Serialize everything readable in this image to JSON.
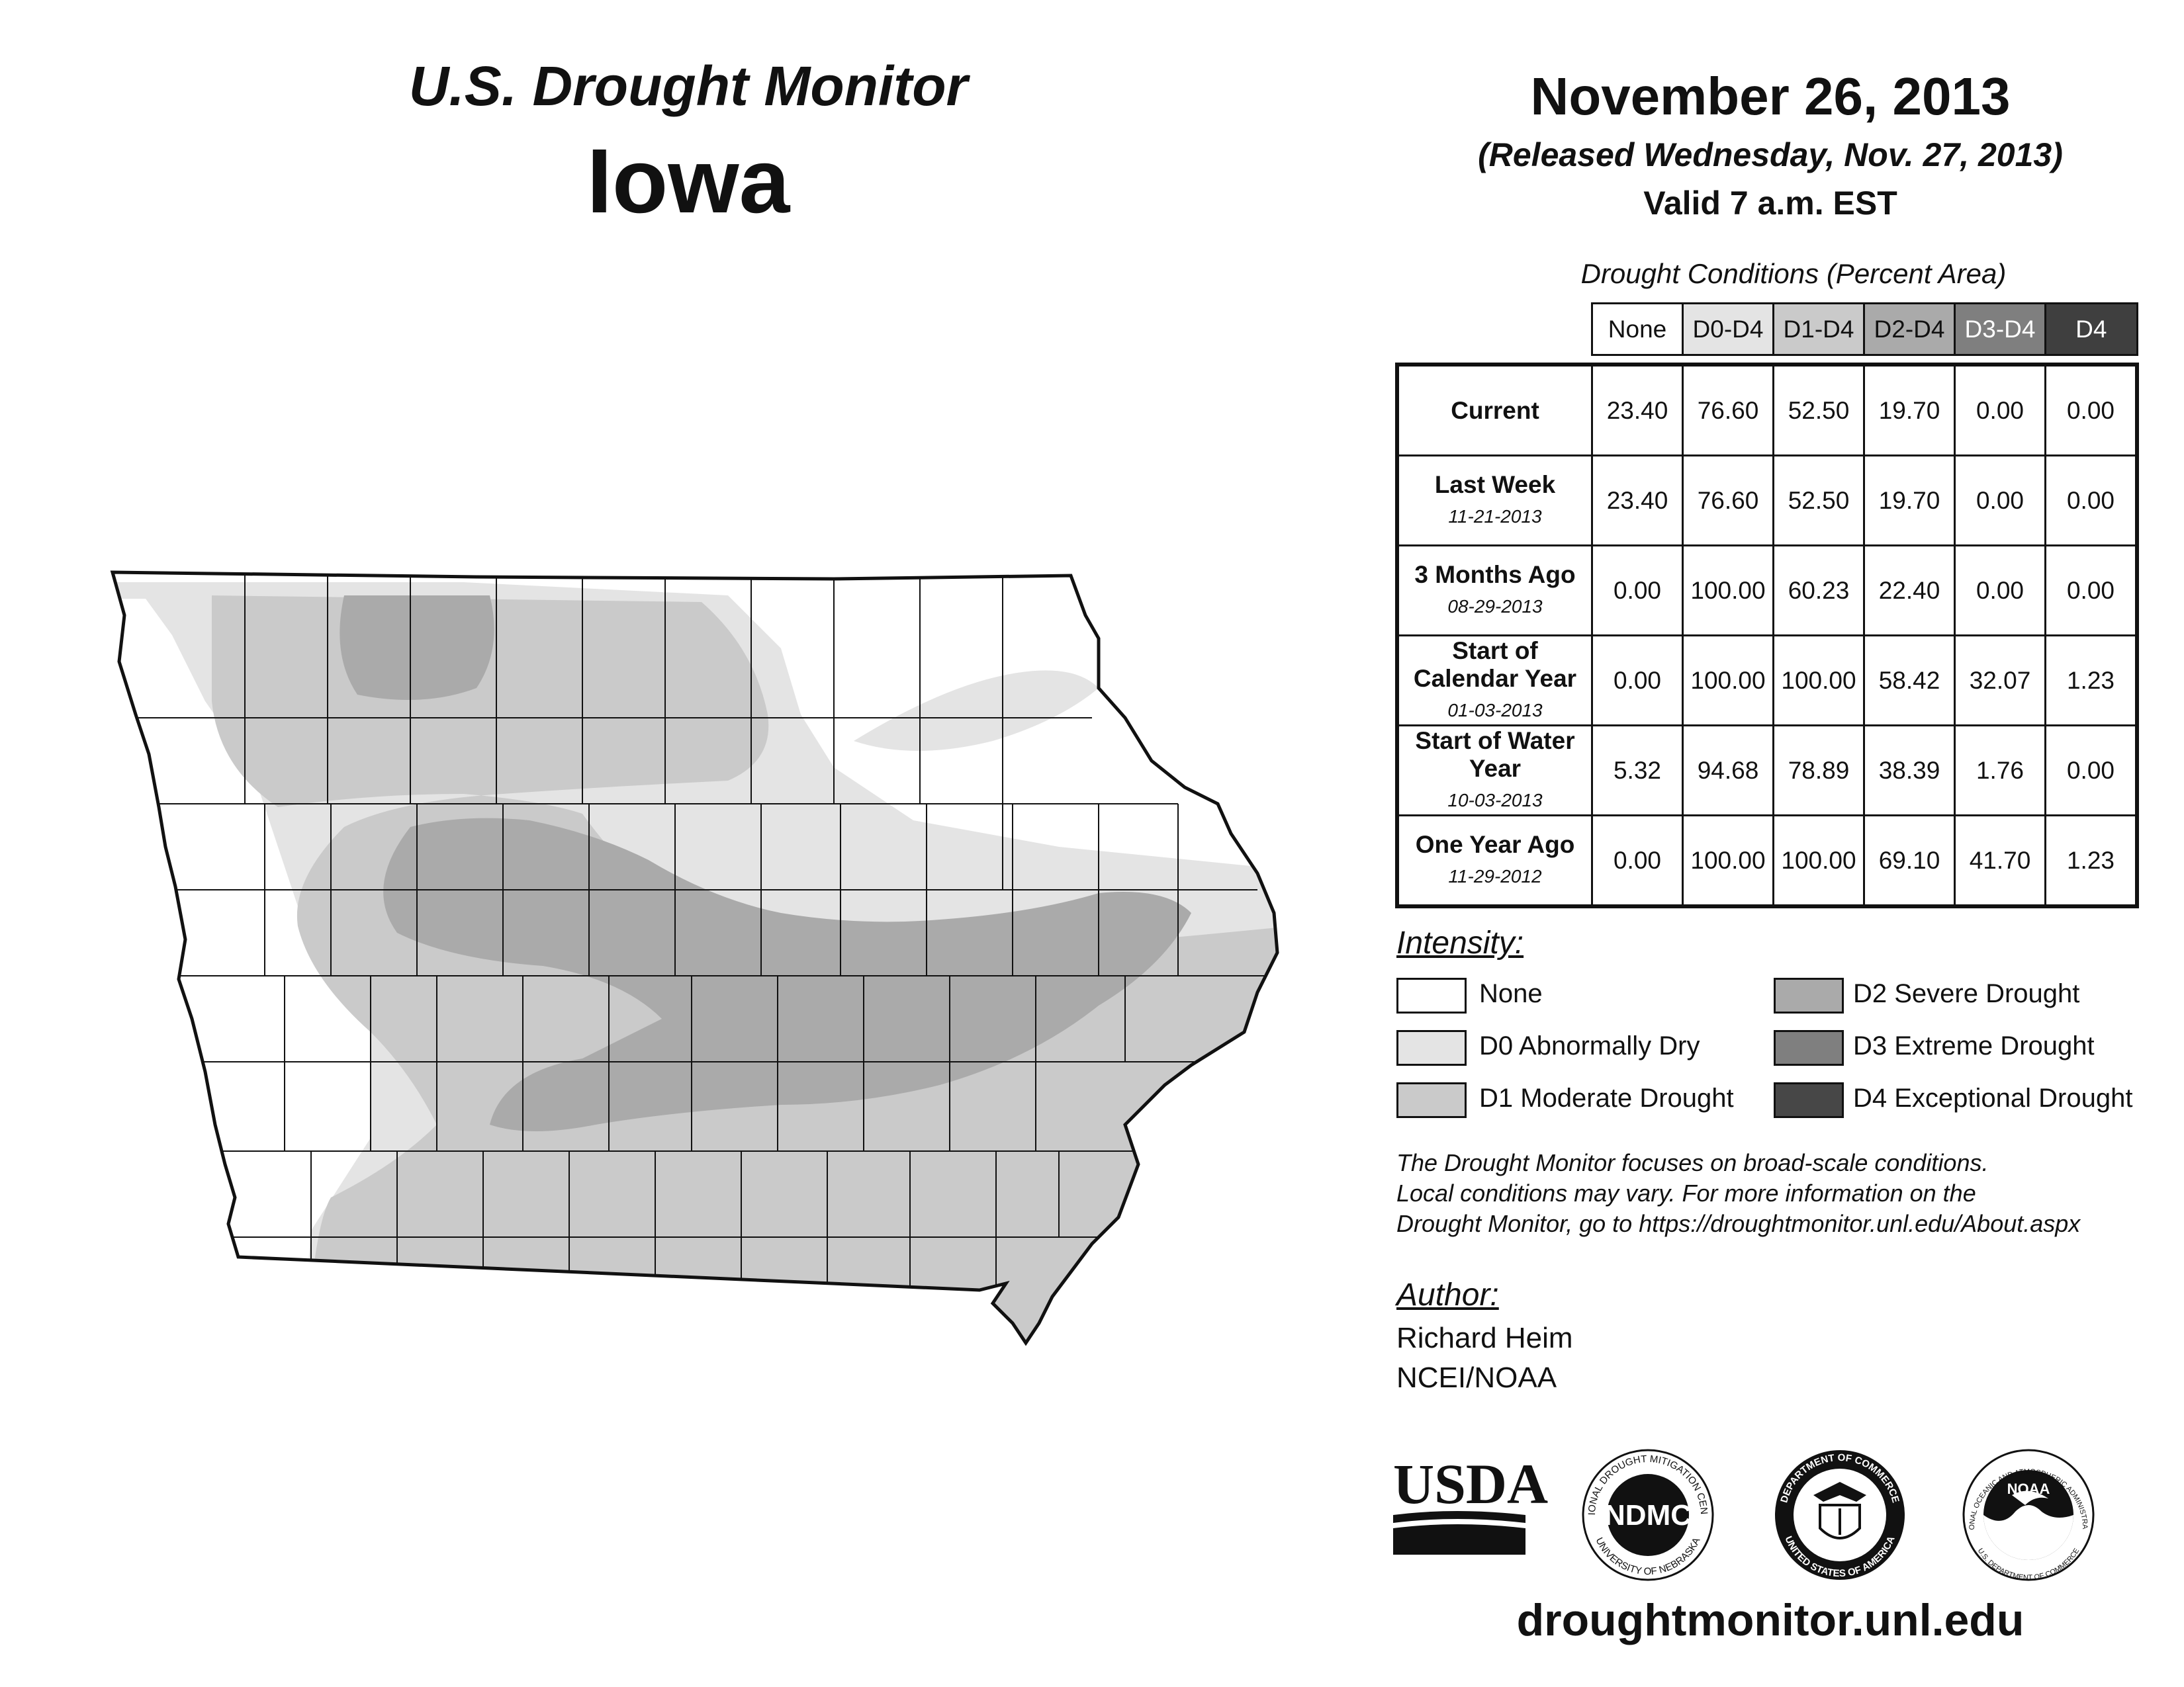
{
  "header": {
    "title": "U.S. Drought Monitor",
    "state": "Iowa",
    "date": "November 26, 2013",
    "released": "(Released Wednesday, Nov. 27, 2013)",
    "valid": "Valid 7 a.m. EST"
  },
  "table": {
    "caption": "Drought Conditions (Percent Area)",
    "columns": [
      "None",
      "D0-D4",
      "D1-D4",
      "D2-D4",
      "D3-D4",
      "D4"
    ],
    "rows": [
      {
        "label": "Current",
        "date": "",
        "values": [
          "23.40",
          "76.60",
          "52.50",
          "19.70",
          "0.00",
          "0.00"
        ]
      },
      {
        "label": "Last Week",
        "date": "11-21-2013",
        "values": [
          "23.40",
          "76.60",
          "52.50",
          "19.70",
          "0.00",
          "0.00"
        ]
      },
      {
        "label": "3 Months Ago",
        "date": "08-29-2013",
        "values": [
          "0.00",
          "100.00",
          "60.23",
          "22.40",
          "0.00",
          "0.00"
        ]
      },
      {
        "label": "Start of Calendar Year",
        "date": "01-03-2013",
        "values": [
          "0.00",
          "100.00",
          "100.00",
          "58.42",
          "32.07",
          "1.23"
        ]
      },
      {
        "label": "Start of Water Year",
        "date": "10-03-2013",
        "values": [
          "5.32",
          "94.68",
          "78.89",
          "38.39",
          "1.76",
          "0.00"
        ]
      },
      {
        "label": "One Year Ago",
        "date": "11-29-2012",
        "values": [
          "0.00",
          "100.00",
          "100.00",
          "69.10",
          "41.70",
          "1.23"
        ]
      }
    ]
  },
  "legend": {
    "title": "Intensity:",
    "items": [
      {
        "label": "None",
        "color": "#ffffff"
      },
      {
        "label": "D0 Abnormally Dry",
        "color": "#e4e4e4"
      },
      {
        "label": "D1 Moderate Drought",
        "color": "#cacaca"
      },
      {
        "label": "D2 Severe Drought",
        "color": "#aaaaaa"
      },
      {
        "label": "D3 Extreme Drought",
        "color": "#7f7f7f"
      },
      {
        "label": "D4 Exceptional Drought",
        "color": "#474747"
      }
    ]
  },
  "disclaimer": {
    "line1": "The Drought Monitor focuses on broad-scale conditions.",
    "line2": "Local conditions may vary. For more information on the",
    "line3": "Drought Monitor, go to https://droughtmonitor.unl.edu/About.aspx"
  },
  "author": {
    "title": "Author:",
    "name": "Richard Heim",
    "org": "NCEI/NOAA"
  },
  "logos": {
    "usda": "USDA",
    "ndmc": "NDMC",
    "ndmc_top": "NATIONAL DROUGHT MITIGATION CENTER",
    "ndmc_bottom": "UNIVERSITY OF NEBRASKA",
    "doc_top": "DEPARTMENT OF COMMERCE",
    "doc_bottom": "UNITED STATES OF AMERICA",
    "noaa": "NOAA",
    "noaa_ring": "NATIONAL OCEANIC AND ATMOSPHERIC ADMINISTRATION",
    "noaa_bottom": "U.S. DEPARTMENT OF COMMERCE"
  },
  "website": "droughtmonitor.unl.edu"
}
